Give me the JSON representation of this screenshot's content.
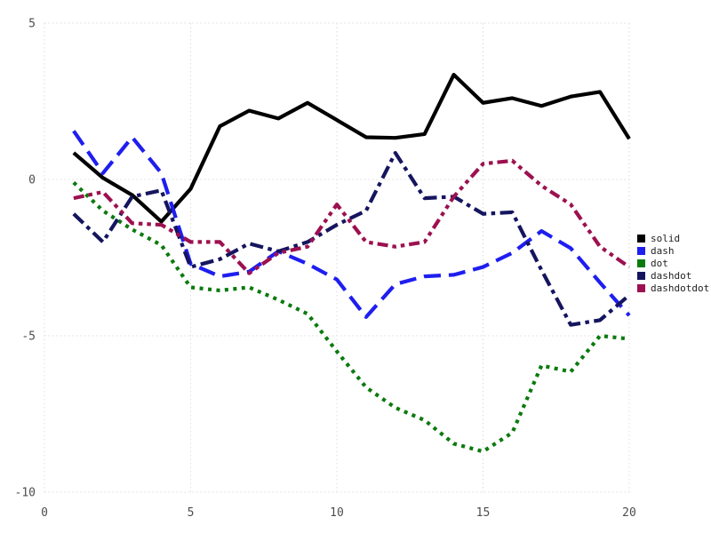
{
  "chart_data": {
    "type": "line",
    "title": "",
    "xlabel": "",
    "ylabel": "",
    "x": [
      1,
      2,
      3,
      4,
      5,
      6,
      7,
      8,
      9,
      10,
      11,
      12,
      13,
      14,
      15,
      16,
      17,
      18,
      19,
      20
    ],
    "xlim": [
      0,
      20
    ],
    "ylim": [
      -10,
      5
    ],
    "xticks": [
      0,
      5,
      10,
      15,
      20
    ],
    "yticks": [
      5,
      0,
      -5,
      -10
    ],
    "grid": "dotted",
    "grid_color": "#dcdcdc",
    "tick_label_color": "#4d4d4d",
    "legend_position": "right",
    "series": [
      {
        "name": "solid",
        "color": "#000000",
        "linestyle": "solid",
        "values": [
          0.85,
          0.05,
          -0.5,
          -1.35,
          -0.3,
          1.7,
          2.2,
          1.95,
          2.45,
          1.9,
          1.35,
          1.33,
          1.45,
          3.35,
          2.45,
          2.6,
          2.35,
          2.65,
          2.8,
          1.3
        ]
      },
      {
        "name": "dash",
        "color": "#1e1ef0",
        "linestyle": "dash",
        "values": [
          1.55,
          0.2,
          1.35,
          0.2,
          -2.7,
          -3.1,
          -2.95,
          -2.3,
          -2.7,
          -3.2,
          -4.4,
          -3.35,
          -3.1,
          -3.05,
          -2.8,
          -2.35,
          -1.65,
          -2.2,
          -3.3,
          -4.35
        ]
      },
      {
        "name": "dot",
        "color": "#0b7a0e",
        "linestyle": "dot",
        "values": [
          -0.1,
          -1.0,
          -1.6,
          -2.1,
          -3.45,
          -3.55,
          -3.45,
          -3.85,
          -4.3,
          -5.5,
          -6.65,
          -7.3,
          -7.7,
          -8.45,
          -8.7,
          -8.1,
          -5.95,
          -6.15,
          -5.0,
          -5.1
        ]
      },
      {
        "name": "dashdot",
        "color": "#15155f",
        "linestyle": "dashdot",
        "values": [
          -1.1,
          -2.0,
          -0.55,
          -0.35,
          -2.8,
          -2.55,
          -2.05,
          -2.3,
          -2.0,
          -1.45,
          -1.0,
          0.85,
          -0.6,
          -0.55,
          -1.1,
          -1.05,
          -2.9,
          -4.65,
          -4.5,
          -3.7
        ]
      },
      {
        "name": "dashdotdot",
        "color": "#9c1150",
        "linestyle": "dashdotdot",
        "values": [
          -0.6,
          -0.4,
          -1.4,
          -1.45,
          -2.0,
          -2.0,
          -3.0,
          -2.35,
          -2.15,
          -0.8,
          -2.0,
          -2.15,
          -2.0,
          -0.55,
          0.5,
          0.6,
          -0.2,
          -0.8,
          -2.15,
          -2.8
        ]
      }
    ]
  }
}
